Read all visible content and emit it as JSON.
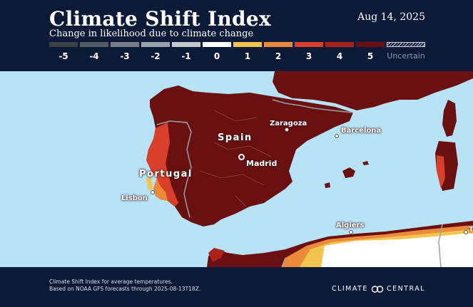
{
  "header": {
    "title": "Climate Shift Index",
    "subtitle": "Change in likelihood due to climate change",
    "date": "Aug 14, 2025"
  },
  "legend": {
    "items": [
      {
        "label": "-5",
        "color": "#3b3f46"
      },
      {
        "label": "-4",
        "color": "#545a63"
      },
      {
        "label": "-3",
        "color": "#767d87"
      },
      {
        "label": "-2",
        "color": "#9aa1ab"
      },
      {
        "label": "-1",
        "color": "#c3c8cf"
      },
      {
        "label": "0",
        "color": "#ffffff"
      },
      {
        "label": "1",
        "color": "#f3c54e"
      },
      {
        "label": "2",
        "color": "#ec8a3c"
      },
      {
        "label": "3",
        "color": "#d9402b"
      },
      {
        "label": "4",
        "color": "#a9211d"
      },
      {
        "label": "5",
        "color": "#6b1010"
      }
    ],
    "uncertain_label": "Uncertain"
  },
  "map": {
    "countries": {
      "spain": "Spain",
      "portugal": "Portugal"
    },
    "cities": {
      "zaragoza": "Zaragoza",
      "barcelona": "Barcelona",
      "madrid": "Madrid",
      "lisbon": "Lisbon",
      "algiers": "Algiers",
      "partial_t": "T"
    },
    "colors": {
      "sea": "#b8e3f7",
      "land_extreme": "#6b1010",
      "border": "#9aa0a8"
    }
  },
  "footer": {
    "note_line1": "Climate Shift Index for average temperatures.",
    "note_line2": "Based on NOAA GFS forecasts through 2025-08-13T18Z.",
    "brand_left": "CLIMATE",
    "brand_right": "CENTRAL"
  }
}
